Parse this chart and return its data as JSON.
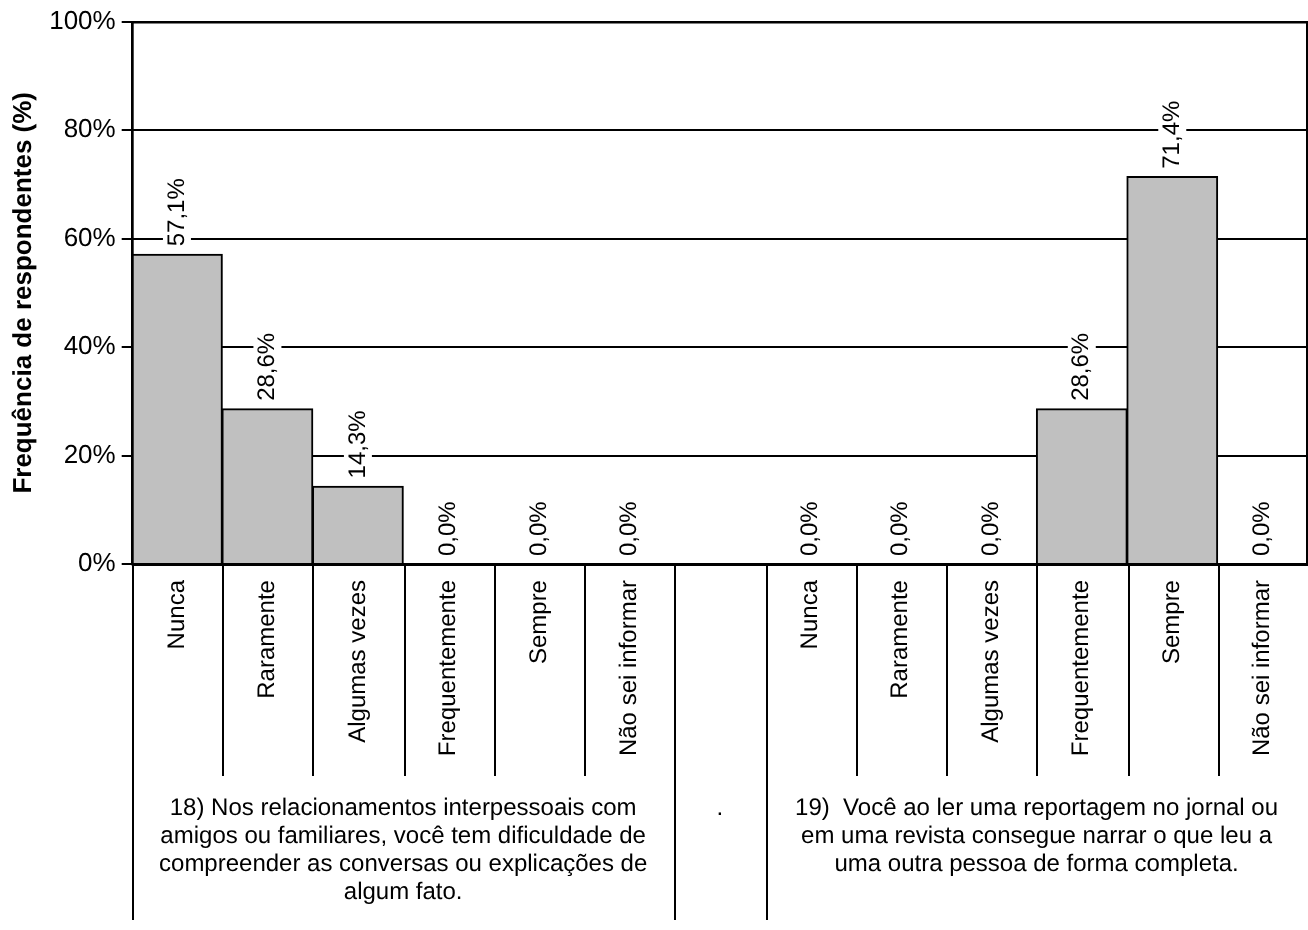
{
  "chart_data": {
    "type": "bar",
    "ylabel": "Frequência de respondentes (%)",
    "categories": [
      "Nunca",
      "Raramente",
      "Algumas vezes",
      "Frequentemente",
      "Sempre",
      "Não sei informar",
      null,
      "Nunca",
      "Raramente",
      "Algumas vezes",
      "Frequentemente",
      "Sempre",
      "Não sei informar"
    ],
    "values": [
      57.1,
      28.6,
      14.3,
      0,
      0,
      0,
      null,
      0,
      0,
      0,
      28.6,
      71.4,
      0
    ],
    "value_labels": [
      "57,1%",
      "28,6%",
      "14,3%",
      "0,0%",
      "0,0%",
      "0,0%",
      null,
      "0,0%",
      "0,0%",
      "0,0%",
      "28,6%",
      "71,4%",
      "0,0%"
    ],
    "color": "#c0c0c0",
    "ylim": [
      0,
      100
    ],
    "yticks": [
      {
        "value": 0,
        "label": "0%"
      },
      {
        "value": 20,
        "label": "20%"
      },
      {
        "value": 40,
        "label": "40%"
      },
      {
        "value": 60,
        "label": "60%"
      },
      {
        "value": 80,
        "label": "80%"
      },
      {
        "value": 100,
        "label": "100%"
      }
    ],
    "grid": "y",
    "annotations": [
      "18) Nos relacionamentos interpessoais com amigos ou familiares, você tem dificuldade de compreender as conversas ou explicações de algum fato.",
      ".",
      "19)  Você ao ler uma reportagem no jornal ou em uma revista consegue narrar o que leu a uma outra pessoa de forma completa."
    ]
  }
}
